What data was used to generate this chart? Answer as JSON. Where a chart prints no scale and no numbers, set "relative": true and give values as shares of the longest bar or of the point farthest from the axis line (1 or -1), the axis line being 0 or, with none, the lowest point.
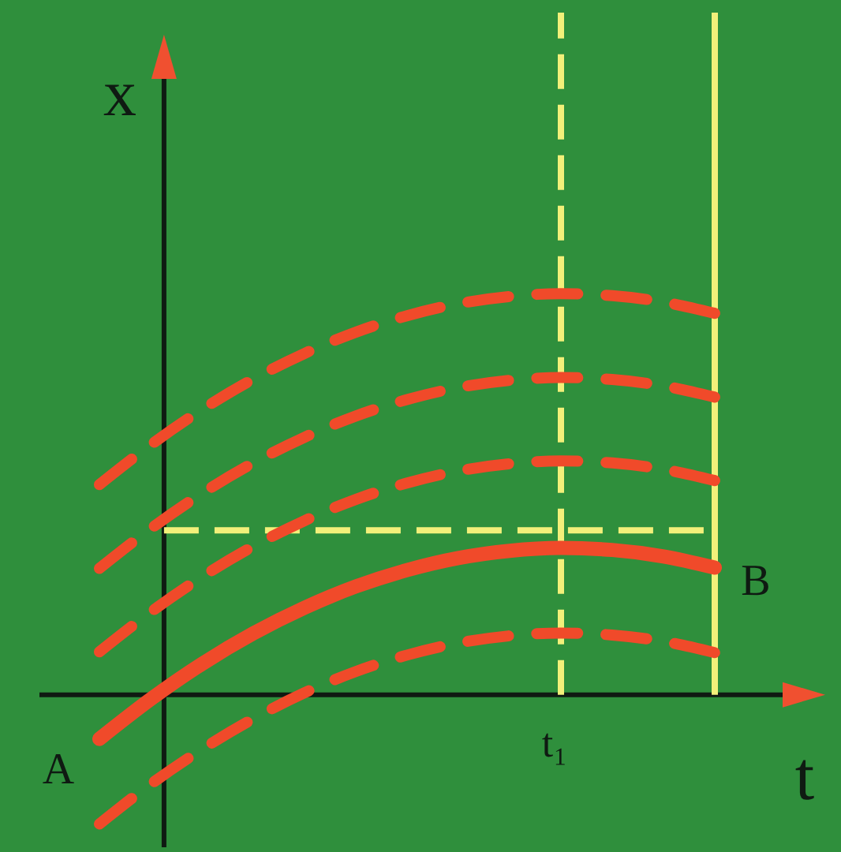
{
  "chart_data": {
    "type": "line",
    "xlabel": "t",
    "ylabel": "x",
    "relative": true,
    "marker": "none",
    "categories": [
      null,
      null,
      null,
      null,
      null,
      null,
      null,
      null,
      null,
      null,
      null,
      null,
      null
    ],
    "series": [
      {
        "color": "#f04a2a",
        "line_style": "dashed",
        "values": [
          0.524,
          0.623,
          0.711,
          0.787,
          0.851,
          0.904,
          0.945,
          0.975,
          0.993,
          1,
          0.995,
          0.979,
          0.951
        ]
      },
      {
        "color": "#f04a2a",
        "line_style": "dashed",
        "values": [
          0.315,
          0.414,
          0.502,
          0.578,
          0.642,
          0.695,
          0.736,
          0.766,
          0.784,
          0.791,
          0.786,
          0.77,
          0.742
        ]
      },
      {
        "color": "#f04a2a",
        "line_style": "dashed",
        "values": [
          0.107,
          0.206,
          0.294,
          0.37,
          0.434,
          0.487,
          0.528,
          0.558,
          0.576,
          0.583,
          0.578,
          0.562,
          0.534
        ]
      },
      {
        "color": "#f04a2a",
        "line_style": "solid",
        "values": [
          -0.11,
          -0.011,
          0.077,
          0.153,
          0.217,
          0.27,
          0.311,
          0.341,
          0.359,
          0.366,
          0.361,
          0.345,
          0.317
        ]
      },
      {
        "color": "#f04a2a",
        "line_style": "dashed",
        "values": [
          -0.322,
          -0.223,
          -0.136,
          -0.06,
          0.005,
          0.058,
          0.099,
          0.129,
          0.147,
          0.154,
          0.149,
          0.133,
          0.105
        ]
      }
    ],
    "ref_lines": [
      {
        "axis": "y",
        "value": 0.41,
        "color": "#f2f07a",
        "line_style": "dashed"
      }
    ],
    "annotations": [
      "t₁",
      "A",
      "B"
    ]
  }
}
